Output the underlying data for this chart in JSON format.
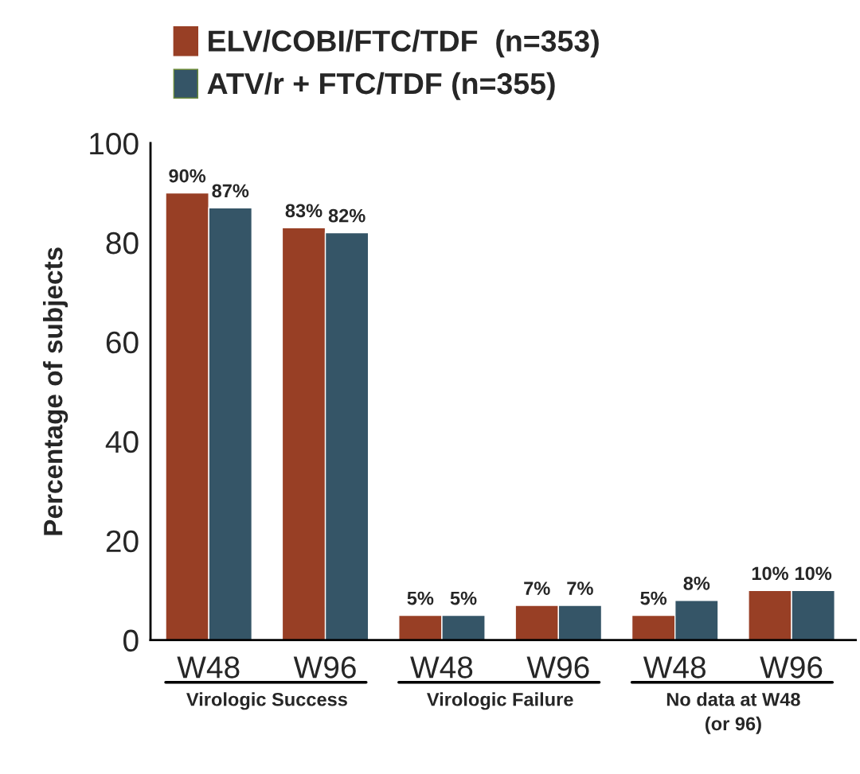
{
  "chart_data": {
    "type": "bar",
    "ylabel": "Percentage of subjects",
    "categories": [
      "W48",
      "W96",
      "W48",
      "W96",
      "W48",
      "W96"
    ],
    "series": [
      {
        "name": "ELV/COBI/FTC/TDF  (n=353)",
        "color": "#983f25",
        "values": [
          90,
          83,
          5,
          7,
          5,
          10
        ],
        "value_labels": [
          "90%",
          "83%",
          "5%",
          "7%",
          "5%",
          "10%"
        ]
      },
      {
        "name": "ATV/r + FTC/TDF (n=355)",
        "color": "#355567",
        "values": [
          87,
          82,
          5,
          7,
          8,
          10
        ],
        "value_labels": [
          "87%",
          "82%",
          "5%",
          "7%",
          "8%",
          "10%"
        ]
      }
    ],
    "annotations": [
      "Virologic Success",
      "Virologic Failure",
      "No data at W48\n(or 96)"
    ],
    "ylim": [
      0,
      100
    ],
    "yticks": [
      0,
      20,
      40,
      60,
      80,
      100
    ],
    "grid": false,
    "legend": "top"
  }
}
